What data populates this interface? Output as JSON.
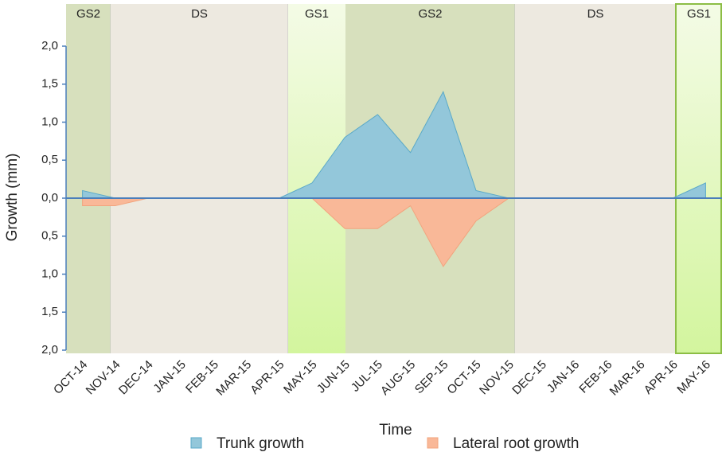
{
  "chart_data": {
    "type": "area",
    "x_label": "Time",
    "y_label": "Growth (mm)",
    "categories": [
      "OCT-14",
      "NOV-14",
      "DEC-14",
      "JAN-15",
      "FEB-15",
      "MAR-15",
      "APR-15",
      "MAY-15",
      "JUN-15",
      "JUL-15",
      "AUG-15",
      "SEP-15",
      "OCT-15",
      "NOV-15",
      "DEC-15",
      "JAN-16",
      "FEB-16",
      "MAR-16",
      "APR-16",
      "MAY-16"
    ],
    "series": [
      {
        "name": "Trunk growth",
        "color": "#93c7da",
        "values": [
          0.1,
          0,
          0,
          0,
          0,
          0,
          0,
          0.2,
          0.8,
          1.1,
          0.6,
          1.4,
          0.1,
          0,
          0,
          0,
          0,
          0,
          0,
          0.2
        ]
      },
      {
        "name": "Lateral root growth",
        "color": "#f9b898",
        "values": [
          -0.1,
          -0.1,
          0,
          0,
          0,
          0,
          0,
          0,
          -0.4,
          -0.4,
          -0.1,
          -0.9,
          -0.3,
          0,
          0,
          0,
          0,
          0,
          0,
          0
        ]
      }
    ],
    "ylim": [
      -2,
      2
    ],
    "yticks": [
      {
        "value": 2,
        "label": "2,0"
      },
      {
        "value": 1.5,
        "label": "1,5"
      },
      {
        "value": 1,
        "label": "1,0"
      },
      {
        "value": 0.5,
        "label": "0,5"
      },
      {
        "value": 0,
        "label": "0,0"
      },
      {
        "value": -0.5,
        "label": "0,5"
      },
      {
        "value": -1,
        "label": "1,0"
      },
      {
        "value": -1.5,
        "label": "1,5"
      },
      {
        "value": -2,
        "label": "2,0"
      }
    ],
    "seasons": [
      {
        "label": "GS2",
        "kind": "GS2"
      },
      {
        "label": "DS",
        "kind": "DS"
      },
      {
        "label": "GS1",
        "kind": "GS1"
      },
      {
        "label": "GS2",
        "kind": "GS2"
      },
      {
        "label": "DS",
        "kind": "DS"
      },
      {
        "label": "GS1",
        "kind": "GS1"
      }
    ]
  }
}
